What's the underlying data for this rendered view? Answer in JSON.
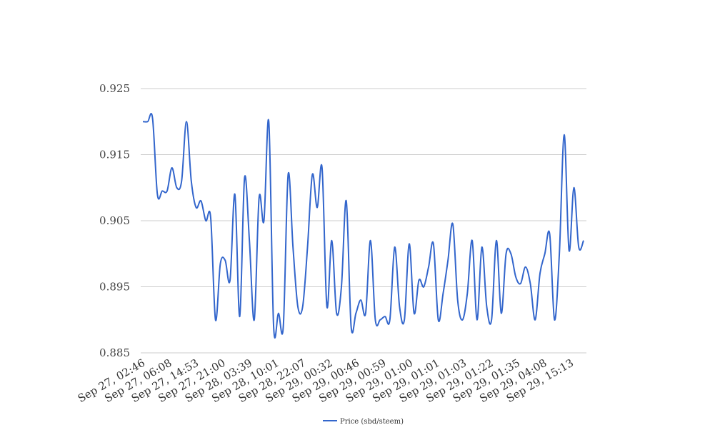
{
  "chart_data": {
    "type": "line",
    "title": "",
    "xlabel": "",
    "ylabel": "",
    "ylim": [
      0.885,
      0.925
    ],
    "y_ticks": [
      "0.925",
      "0.915",
      "0.905",
      "0.895",
      "0.885"
    ],
    "x_tick_labels": [
      "Sep 27, 02:46",
      "Sep 27, 06:08",
      "Sep 27, 14:53",
      "Sep 27, 21:00",
      "Sep 28, 03:39",
      "Sep 28, 10:01",
      "Sep 28, 22:07",
      "Sep 29, 00:32",
      "Sep 29, 00:46",
      "Sep 29, 00:59",
      "Sep 29, 01:00",
      "Sep 29, 01:01",
      "Sep 29, 01:03",
      "Sep 29, 01:22",
      "Sep 29, 01:35",
      "Sep 29, 04:08",
      "Sep 29, 15:13"
    ],
    "grid": "horizontal",
    "legend_position": "bottom",
    "series": [
      {
        "name": "Price (sbd/steem)",
        "color": "#3366cc",
        "values": [
          0.92,
          0.92,
          0.9205,
          0.909,
          0.9095,
          0.9095,
          0.913,
          0.91,
          0.911,
          0.92,
          0.911,
          0.907,
          0.908,
          0.905,
          0.9055,
          0.89,
          0.8985,
          0.899,
          0.896,
          0.909,
          0.8905,
          0.9115,
          0.902,
          0.89,
          0.9085,
          0.905,
          0.92,
          0.889,
          0.891,
          0.889,
          0.912,
          0.901,
          0.892,
          0.892,
          0.901,
          0.912,
          0.907,
          0.913,
          0.892,
          0.902,
          0.891,
          0.895,
          0.908,
          0.889,
          0.891,
          0.893,
          0.891,
          0.902,
          0.89,
          0.89,
          0.8905,
          0.89,
          0.901,
          0.892,
          0.89,
          0.9015,
          0.891,
          0.896,
          0.895,
          0.898,
          0.9015,
          0.89,
          0.894,
          0.899,
          0.9045,
          0.893,
          0.89,
          0.894,
          0.902,
          0.89,
          0.901,
          0.892,
          0.89,
          0.902,
          0.891,
          0.9,
          0.9,
          0.8965,
          0.8955,
          0.898,
          0.8955,
          0.89,
          0.897,
          0.9,
          0.903,
          0.89,
          0.9,
          0.918,
          0.9005,
          0.91,
          0.901,
          0.902
        ]
      }
    ]
  }
}
